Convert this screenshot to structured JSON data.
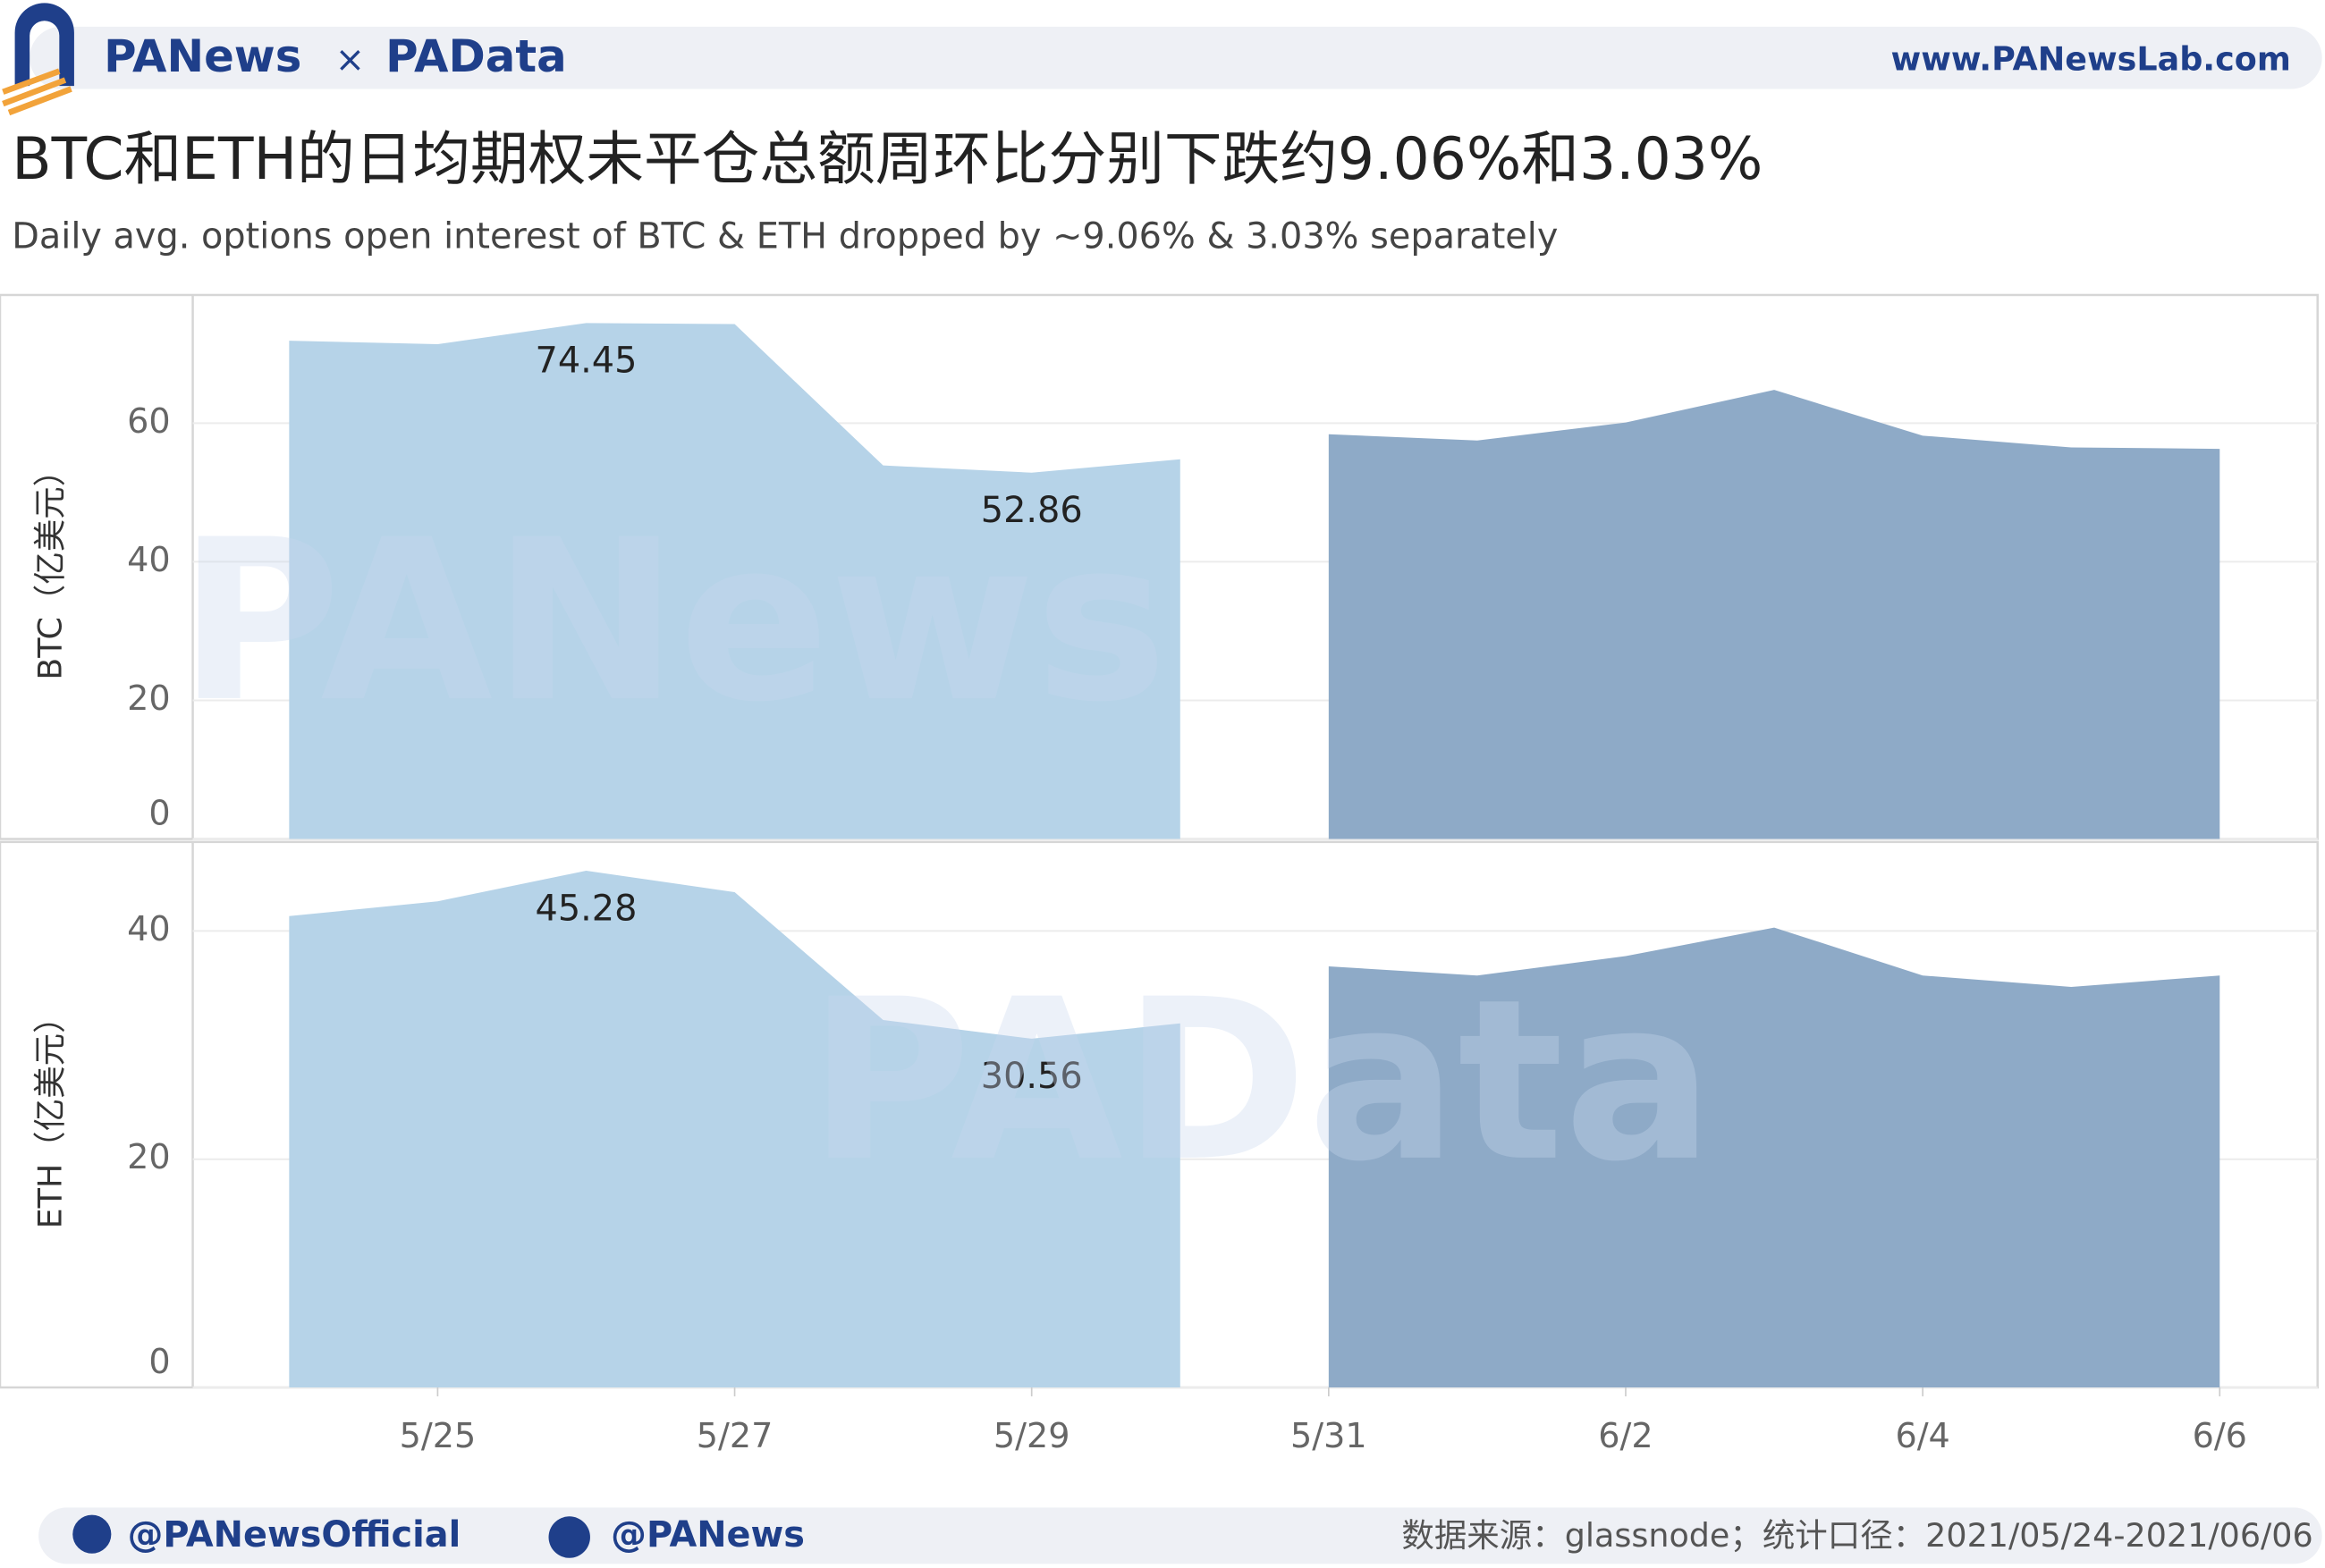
{
  "header": {
    "brand": "PANews",
    "cross": "×",
    "brand2": "PAData",
    "url": "www.PANewsLab.com"
  },
  "title": "BTC和ETH的日均期权未平仓总额周环比分别下跌约9.06%和3.03%",
  "subtitle": "Daily avg. options open interest of BTC & ETH dropped by ~9.06% & 3.03% separately",
  "watermarks": [
    "PANews",
    "PAData"
  ],
  "chart_data": [
    {
      "type": "area",
      "y_label": "BTC（亿美元）",
      "categories": [
        null,
        "5/25",
        null,
        "5/27",
        null,
        "5/29",
        null,
        "5/31",
        null,
        "6/2",
        null,
        "6/4",
        null,
        "6/6"
      ],
      "ylim": [
        0,
        78.5
      ],
      "yticks": [
        0,
        20,
        40,
        60
      ],
      "grid": true,
      "series": [
        {
          "color": "#b6d3e8",
          "values": [
            71.9,
            71.4,
            74.45,
            74.3,
            53.9,
            52.86,
            54.8,
            null,
            null,
            null,
            null,
            null,
            null,
            null
          ],
          "value_labels": [
            null,
            null,
            "74.45",
            null,
            null,
            "52.86",
            null,
            null,
            null,
            null,
            null,
            null,
            null,
            null
          ]
        },
        {
          "color": "#8eaac7",
          "values": [
            null,
            null,
            null,
            null,
            null,
            null,
            null,
            58.4,
            57.5,
            60.1,
            64.8,
            58.2,
            56.5,
            56.3
          ]
        }
      ]
    },
    {
      "type": "area",
      "y_label": "ETH（亿美元）",
      "categories": [
        null,
        "5/25",
        null,
        "5/27",
        null,
        "5/29",
        null,
        "5/31",
        null,
        "6/2",
        null,
        "6/4",
        null,
        "6/6"
      ],
      "ylim": [
        0,
        47.8
      ],
      "yticks": [
        0,
        20,
        40
      ],
      "grid": true,
      "series": [
        {
          "color": "#b6d3e8",
          "values": [
            41.3,
            42.6,
            45.28,
            43.4,
            32.2,
            30.56,
            31.9,
            null,
            null,
            null,
            null,
            null,
            null,
            null
          ],
          "value_labels": [
            null,
            null,
            "45.28",
            null,
            null,
            "30.56",
            null,
            null,
            null,
            null,
            null,
            null,
            null,
            null
          ]
        },
        {
          "color": "#8eaac7",
          "values": [
            null,
            null,
            null,
            null,
            null,
            null,
            null,
            36.9,
            36.1,
            37.8,
            40.3,
            36.1,
            35.1,
            36.1
          ]
        }
      ]
    }
  ],
  "footer": {
    "twitter": "@PANewsOfficial",
    "weibo": "@PANews",
    "source": "数据来源：glassnode；统计口径：2021/05/24-2021/06/06"
  }
}
